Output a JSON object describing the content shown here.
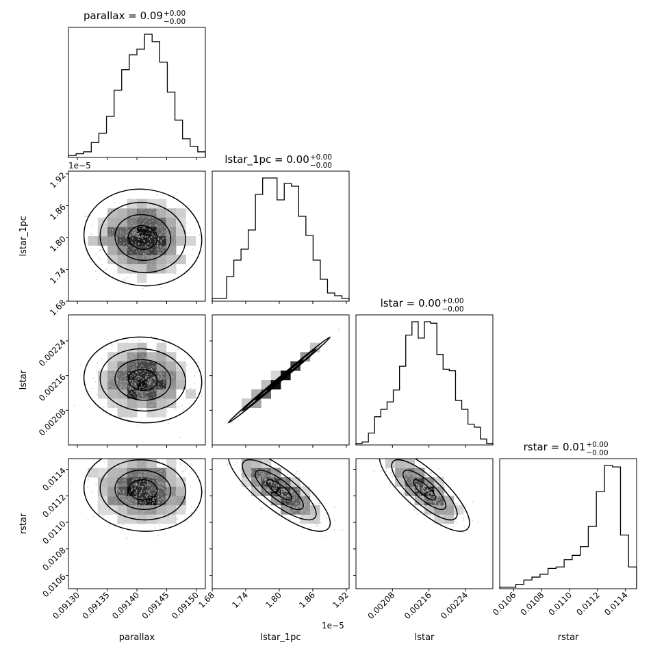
{
  "chart_data": {
    "type": "corner",
    "parameters": [
      "parallax",
      "lstar_1pc",
      "lstar",
      "rstar"
    ],
    "titles": [
      {
        "prefix": "parallax = 0.09",
        "sup": "+0.00",
        "sub": "−0.00"
      },
      {
        "prefix": "lstar_1pc = 0.00",
        "sup": "+0.00",
        "sub": "−0.00"
      },
      {
        "prefix": "lstar = 0.00",
        "sup": "+0.00",
        "sub": "−0.00"
      },
      {
        "prefix": "rstar = 0.01",
        "sup": "+0.00",
        "sub": "−0.00"
      }
    ],
    "axes": [
      {
        "name": "parallax",
        "range": [
          0.091285,
          0.091515
        ],
        "ticks": [
          0.0913,
          0.09135,
          0.0914,
          0.09145,
          0.0915
        ],
        "tick_labels": [
          "0.09130",
          "0.09135",
          "0.09140",
          "0.09145",
          "0.09150"
        ],
        "offset": "1e−5"
      },
      {
        "name": "lstar_1pc",
        "range": [
          1.68,
          1.925
        ],
        "ticks": [
          1.68,
          1.74,
          1.8,
          1.86,
          1.92
        ],
        "tick_labels": [
          "1.68",
          "1.74",
          "1.80",
          "1.86",
          "1.92"
        ],
        "offset": "1e−5"
      },
      {
        "name": "lstar",
        "range": [
          0.002,
          0.0023
        ],
        "ticks": [
          0.00208,
          0.00216,
          0.00224
        ],
        "tick_labels": [
          "0.00208",
          "0.00216",
          "0.00224"
        ]
      },
      {
        "name": "rstar",
        "range": [
          0.0105,
          0.01148
        ],
        "ticks": [
          0.0106,
          0.0108,
          0.011,
          0.0112,
          0.0114
        ],
        "tick_labels": [
          "0.0106",
          "0.0108",
          "0.0110",
          "0.0112",
          "0.0114"
        ]
      }
    ],
    "y_offset_label": "1e−5",
    "histograms": [
      [
        1,
        2,
        3,
        8,
        13,
        22,
        36,
        47,
        55,
        58,
        66,
        62,
        51,
        35,
        20,
        10,
        6,
        3
      ],
      [
        1,
        1,
        9,
        15,
        19,
        26,
        39,
        45,
        45,
        37,
        43,
        42,
        31,
        24,
        15,
        8,
        3,
        2,
        1
      ],
      [
        1,
        2,
        8,
        19,
        24,
        29,
        37,
        53,
        74,
        83,
        72,
        83,
        82,
        61,
        51,
        50,
        30,
        24,
        14,
        12,
        4,
        1
      ],
      [
        1,
        1,
        3,
        6,
        8,
        10,
        14,
        15,
        20,
        23,
        29,
        43,
        67,
        85,
        84,
        37,
        15
      ]
    ],
    "correlations": {
      "1,0": -0.05,
      "2,0": -0.05,
      "2,1": 0.998,
      "3,0": -0.05,
      "3,1": -0.8,
      "3,2": -0.8
    },
    "means": [
      0.09141,
      1.8,
      0.00215,
      0.011245
    ],
    "sigmas": [
      3.8e-05,
      0.035,
      3.8e-05,
      0.00012
    ]
  }
}
